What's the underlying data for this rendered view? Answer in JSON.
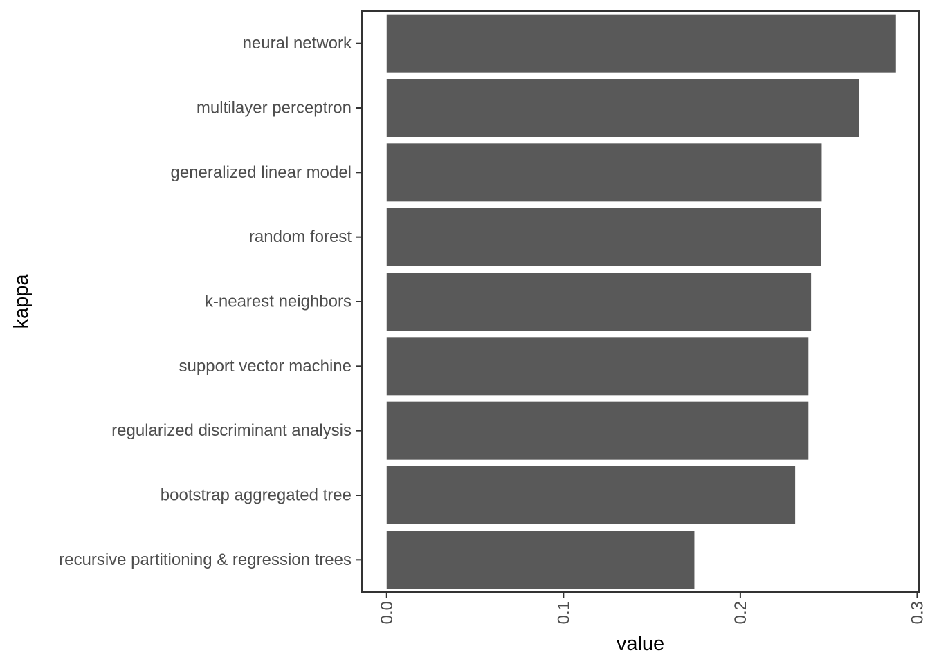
{
  "chart_data": {
    "type": "bar",
    "orientation": "horizontal",
    "title": "",
    "xlabel": "value",
    "ylabel": "kappa",
    "categories": [
      "neural network",
      "multilayer perceptron",
      "generalized linear model",
      "random forest",
      "k-nearest neighbors",
      "support vector machine",
      "regularized discriminant analysis",
      "bootstrap aggregated tree",
      "recursive partitioning & regression trees"
    ],
    "values": [
      0.288,
      0.267,
      0.246,
      0.2455,
      0.24,
      0.2385,
      0.2385,
      0.231,
      0.174
    ],
    "xlim": [
      -0.014,
      0.301
    ],
    "x_ticks": [
      0.0,
      0.1,
      0.2,
      0.3
    ],
    "x_tick_labels": [
      "0.0",
      "0.1",
      "0.2",
      "0.3"
    ],
    "tick_label_rotation": "vertical",
    "grid": false,
    "legend": "none",
    "bar_color": "#595959",
    "axis_color": "#333333",
    "label_color": "#4d4d4d",
    "background": "#ffffff"
  }
}
